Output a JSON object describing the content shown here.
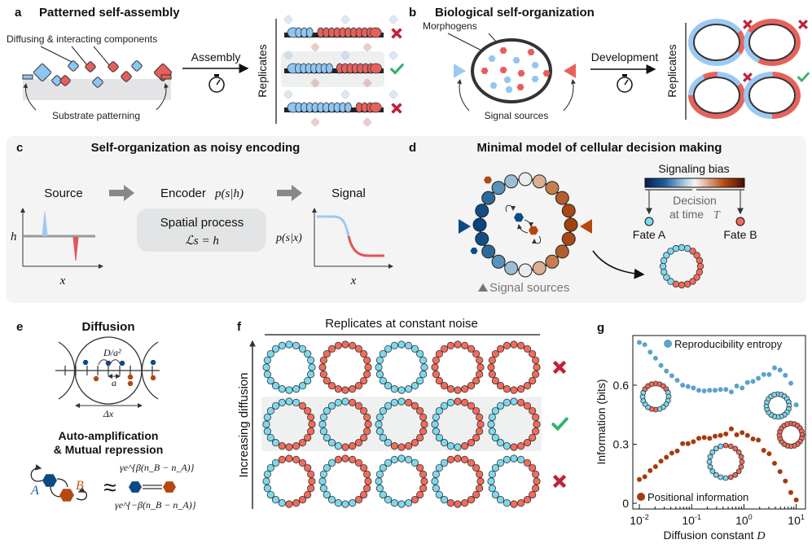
{
  "colors": {
    "fate_a": "#7dd9f0",
    "fate_b": "#f26b5b",
    "comp_blue": "#8ec5f3",
    "comp_red": "#e4605c",
    "bias_blue": "#0b4a83",
    "bias_orange": "#b4480f",
    "cross": "#c0203a",
    "check": "#2eb46a",
    "panel_bg": "#f4f4f4",
    "entropy": "#5ba3c9",
    "posinfo": "#a63a0c"
  },
  "panel_a": {
    "letter": "a",
    "title": "Patterned self-assembly",
    "components_label": "Diffusing & interacting components",
    "substrate_label": "Substrate patterning",
    "arrow_label": "Assembly",
    "replicates_label": "Replicates",
    "replicates": [
      {
        "blue": 4,
        "red": 11,
        "outcome": "fail"
      },
      {
        "blue": 8,
        "red": 8,
        "outcome": "success"
      },
      {
        "blue": 11,
        "red": 4,
        "outcome": "fail"
      }
    ]
  },
  "panel_b": {
    "letter": "b",
    "title": "Biological self-organization",
    "morphogens_label": "Morphogens",
    "sources_label": "Signal sources",
    "arrow_label": "Development",
    "replicates_label": "Replicates",
    "replicates": [
      {
        "pattern": "AABBAAAAAAAA",
        "outcome": "fail"
      },
      {
        "pattern": "BBBBBBBAAABB",
        "outcome": "fail"
      },
      {
        "pattern": "AABBBBBBBAAB",
        "outcome": "fail"
      },
      {
        "pattern": "BBBBBBAAAAAA",
        "outcome": "success"
      }
    ]
  },
  "panel_c": {
    "letter": "c",
    "title": "Self-organization as noisy encoding",
    "source_label": "Source",
    "encoder_label": "Encoder",
    "encoder_math": "p(s|h)",
    "signal_label": "Signal",
    "process_label": "Spatial process",
    "process_math": "ℒs = h",
    "h_label": "h",
    "x_label": "x",
    "psx_label": "p(s|x)"
  },
  "panel_d": {
    "letter": "d",
    "title": "Minimal model of cellular decision making",
    "colorbar_label": "Signaling bias",
    "decision_label_1": "Decision",
    "decision_label_2": "at time",
    "decision_T": "T",
    "fate_a": "Fate A",
    "fate_b": "Fate B",
    "sources_label": "Signal sources",
    "ring_bias": [
      0,
      0.31,
      0.59,
      0.81,
      0.95,
      1,
      0.95,
      0.81,
      0.59,
      0.31,
      0,
      -0.31,
      -0.59,
      -0.81,
      -0.95,
      -1,
      -0.95,
      -0.81,
      -0.59,
      -0.31
    ],
    "result_ring": "AABBBBBBBBBBAAAAAAAA"
  },
  "panel_e": {
    "letter": "e",
    "title": "Diffusion",
    "rate_label": "D/a²",
    "a_label": "a",
    "dx_label": "Δx",
    "subtitle_1": "Auto-amplification",
    "subtitle_2": "& Mutual repression",
    "A_label": "A",
    "B_label": "B",
    "approx": "≈",
    "forward_rate": "γe^{β(n_B − n_A)}",
    "backward_rate": "γe^{−β(n_B − n_A)}"
  },
  "panel_f": {
    "letter": "f",
    "title": "Replicates at constant noise",
    "ylabel": "Increasing diffusion",
    "rows": [
      {
        "outcome": "fail",
        "rings": [
          "AAAAAAAAAAAAAAAAAAAA",
          "BBBBBBBBBBBBBBBBBBBB",
          "AAAAAAAAAAAAAAAAAAAA",
          "BBBBBBBBBBBBBBBBBBBB",
          "BBBBBBBBBBBBBBBBBBBB"
        ]
      },
      {
        "outcome": "success",
        "rings": [
          "AABBBBBBBBBBAAAAAAAA",
          "ABBBBBBBBBBAAAAAAAAA",
          "ABBBBBBBBBBBAAAAAAAA",
          "BBBBBBBBBBAAAAAAAAAA",
          "ABBBBBBBBBBAAAAAAAAA"
        ]
      },
      {
        "outcome": "fail",
        "rings": [
          "BBBBBBBBBBBAAAAAAAAB",
          "BBBBBBBBBAAAAAAAAAAB",
          "AAABBBBBBAAAAAAAAAAA",
          "BBBBBBBBBBBBAAAAAAAB",
          "AABBBBBBBBBAAAAAAAAA"
        ]
      }
    ]
  },
  "panel_g": {
    "letter": "g",
    "insets": [
      "BBBBAAAAAABBAAAAABBB",
      "AAAAAAAAAAAAAAAAAAAA",
      "BBBBBBBBBBBBBBBBBBBB",
      "BBBBBBBBBBAAAAAAAAAA"
    ]
  },
  "chart_data": {
    "type": "scatter",
    "xlabel": "Diffusion constant D",
    "ylabel": "Information (bits)",
    "xscale": "log",
    "xlim": [
      0.008,
      12
    ],
    "ylim": [
      -0.02,
      0.85
    ],
    "xticks": [
      0.01,
      0.1,
      1,
      10
    ],
    "xtick_labels": [
      "10",
      "10",
      "10",
      "10"
    ],
    "xtick_exponents": [
      "-2",
      "-1",
      "0",
      "1"
    ],
    "yticks": [
      0,
      0.3,
      0.6
    ],
    "ytick_labels": [
      "0",
      "0.3",
      "0.6"
    ],
    "legend": "inside",
    "x": [
      0.01,
      0.0127,
      0.0161,
      0.0204,
      0.0259,
      0.0329,
      0.0418,
      0.053,
      0.0673,
      0.0854,
      0.108,
      0.137,
      0.174,
      0.221,
      0.281,
      0.356,
      0.452,
      0.574,
      0.728,
      0.925,
      1.17,
      1.49,
      1.89,
      2.39,
      3.04,
      3.85,
      4.9,
      6.21,
      7.89,
      10.0
    ],
    "series": [
      {
        "name": "Reproducibility entropy",
        "color": "#5ba3c9",
        "values": [
          0.817,
          0.806,
          0.768,
          0.737,
          0.7,
          0.672,
          0.648,
          0.625,
          0.6,
          0.593,
          0.586,
          0.574,
          0.571,
          0.574,
          0.574,
          0.578,
          0.578,
          0.566,
          0.596,
          0.586,
          0.614,
          0.619,
          0.635,
          0.654,
          0.654,
          0.688,
          0.677,
          0.65,
          0.61,
          0.5
        ]
      },
      {
        "name": "Positional information",
        "color": "#a63a0c",
        "values": [
          0.121,
          0.135,
          0.166,
          0.186,
          0.214,
          0.234,
          0.255,
          0.266,
          0.303,
          0.303,
          0.313,
          0.33,
          0.334,
          0.33,
          0.341,
          0.345,
          0.352,
          0.378,
          0.348,
          0.359,
          0.345,
          0.327,
          0.321,
          0.269,
          0.252,
          0.203,
          0.161,
          0.113,
          0.055,
          0.017
        ]
      }
    ]
  }
}
